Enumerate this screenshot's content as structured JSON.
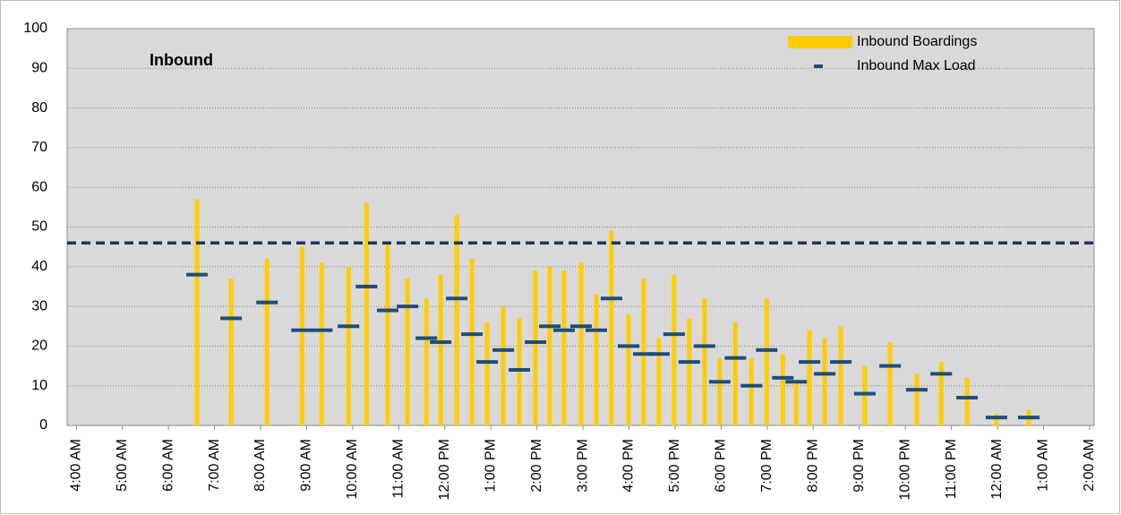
{
  "chart_data": {
    "type": "bar",
    "annotations": [
      "Inbound"
    ],
    "x": [
      6.62,
      7.36,
      8.14,
      8.9,
      9.33,
      9.91,
      10.3,
      10.76,
      11.19,
      11.6,
      11.91,
      12.26,
      12.59,
      12.92,
      13.27,
      13.62,
      13.97,
      14.28,
      14.59,
      14.96,
      15.29,
      15.62,
      15.99,
      16.32,
      16.65,
      16.98,
      17.31,
      17.64,
      17.97,
      18.31,
      18.66,
      18.99,
      19.34,
      19.63,
      19.92,
      20.25,
      20.6,
      21.12,
      21.67,
      22.25,
      22.78,
      23.34,
      23.98,
      24.68
    ],
    "series": [
      {
        "name": "Inbound Boardings",
        "type": "bar",
        "color": "#ffcc00",
        "values": [
          57,
          37,
          42,
          45,
          41,
          40,
          56,
          46,
          37,
          32,
          38,
          53,
          42,
          26,
          30,
          27,
          39,
          40,
          39,
          41,
          33,
          49,
          28,
          37,
          22,
          38,
          27,
          32,
          17,
          26,
          17,
          32,
          18,
          11,
          24,
          22,
          25,
          15,
          21,
          13,
          16,
          12,
          3,
          4
        ]
      },
      {
        "name": "Inbound Max Load",
        "type": "dash",
        "color": "#1f4e79",
        "values": [
          38,
          27,
          31,
          24,
          24,
          25,
          35,
          29,
          30,
          22,
          21,
          32,
          23,
          16,
          19,
          14,
          21,
          25,
          24,
          25,
          24,
          32,
          20,
          18,
          18,
          23,
          16,
          20,
          11,
          17,
          10,
          19,
          12,
          11,
          16,
          13,
          16,
          8,
          15,
          9,
          13,
          7,
          2,
          2
        ]
      }
    ],
    "reference_lines": [
      {
        "value": 46,
        "color": "#17375e"
      }
    ],
    "xlim": [
      3.8,
      26.1
    ],
    "xticks": [
      {
        "value": 4,
        "label": "4:00 AM"
      },
      {
        "value": 5,
        "label": "5:00 AM"
      },
      {
        "value": 6,
        "label": "6:00 AM"
      },
      {
        "value": 7,
        "label": "7:00 AM"
      },
      {
        "value": 8,
        "label": "8:00 AM"
      },
      {
        "value": 9,
        "label": "9:00 AM"
      },
      {
        "value": 10,
        "label": "10:00 AM"
      },
      {
        "value": 11,
        "label": "11:00 AM"
      },
      {
        "value": 12,
        "label": "12:00 PM"
      },
      {
        "value": 13,
        "label": "1:00 PM"
      },
      {
        "value": 14,
        "label": "2:00 PM"
      },
      {
        "value": 15,
        "label": "3:00 PM"
      },
      {
        "value": 16,
        "label": "4:00 PM"
      },
      {
        "value": 17,
        "label": "5:00 PM"
      },
      {
        "value": 18,
        "label": "6:00 PM"
      },
      {
        "value": 19,
        "label": "7:00 PM"
      },
      {
        "value": 20,
        "label": "8:00 PM"
      },
      {
        "value": 21,
        "label": "9:00 PM"
      },
      {
        "value": 22,
        "label": "10:00 PM"
      },
      {
        "value": 23,
        "label": "11:00 PM"
      },
      {
        "value": 24,
        "label": "12:00 AM"
      },
      {
        "value": 25,
        "label": "1:00 AM"
      },
      {
        "value": 26,
        "label": "2:00 AM"
      }
    ],
    "ylim": [
      0,
      100
    ],
    "yticks": [
      0,
      10,
      20,
      30,
      40,
      50,
      60,
      70,
      80,
      90,
      100
    ],
    "grid": true,
    "legend": "top-right"
  }
}
